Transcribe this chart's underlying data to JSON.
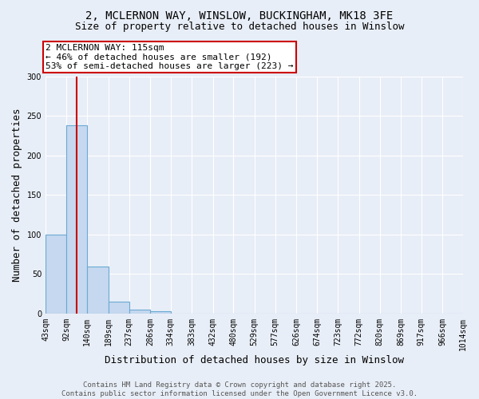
{
  "title_line1": "2, MCLERNON WAY, WINSLOW, BUCKINGHAM, MK18 3FE",
  "title_line2": "Size of property relative to detached houses in Winslow",
  "xlabel": "Distribution of detached houses by size in Winslow",
  "ylabel": "Number of detached properties",
  "bin_edges": [
    43,
    92,
    140,
    189,
    237,
    286,
    334,
    383,
    432,
    480,
    529,
    577,
    626,
    674,
    723,
    772,
    820,
    869,
    917,
    966,
    1014
  ],
  "bin_labels": [
    "43sqm",
    "92sqm",
    "140sqm",
    "189sqm",
    "237sqm",
    "286sqm",
    "334sqm",
    "383sqm",
    "432sqm",
    "480sqm",
    "529sqm",
    "577sqm",
    "626sqm",
    "674sqm",
    "723sqm",
    "772sqm",
    "820sqm",
    "869sqm",
    "917sqm",
    "966sqm",
    "1014sqm"
  ],
  "bar_values": [
    100,
    238,
    60,
    15,
    5,
    3,
    0,
    0,
    0,
    0,
    0,
    0,
    0,
    0,
    0,
    0,
    0,
    0,
    0,
    0
  ],
  "bar_color": "#c5d8ef",
  "bar_edgecolor": "#6aaad4",
  "property_size": 115,
  "property_label": "2 MCLERNON WAY: 115sqm",
  "annotation_line2": "← 46% of detached houses are smaller (192)",
  "annotation_line3": "53% of semi-detached houses are larger (223) →",
  "vline_color": "#cc0000",
  "ylim": [
    0,
    300
  ],
  "yticks": [
    0,
    50,
    100,
    150,
    200,
    250,
    300
  ],
  "bg_color": "#e8eef7",
  "plot_bg_color": "#e8eef7",
  "annotation_box_facecolor": "#ffffff",
  "annotation_box_edgecolor": "#cc0000",
  "footer_line1": "Contains HM Land Registry data © Crown copyright and database right 2025.",
  "footer_line2": "Contains public sector information licensed under the Open Government Licence v3.0.",
  "title_fontsize": 10,
  "subtitle_fontsize": 9,
  "axis_label_fontsize": 9,
  "tick_fontsize": 7,
  "annotation_fontsize": 8,
  "footer_fontsize": 6.5
}
